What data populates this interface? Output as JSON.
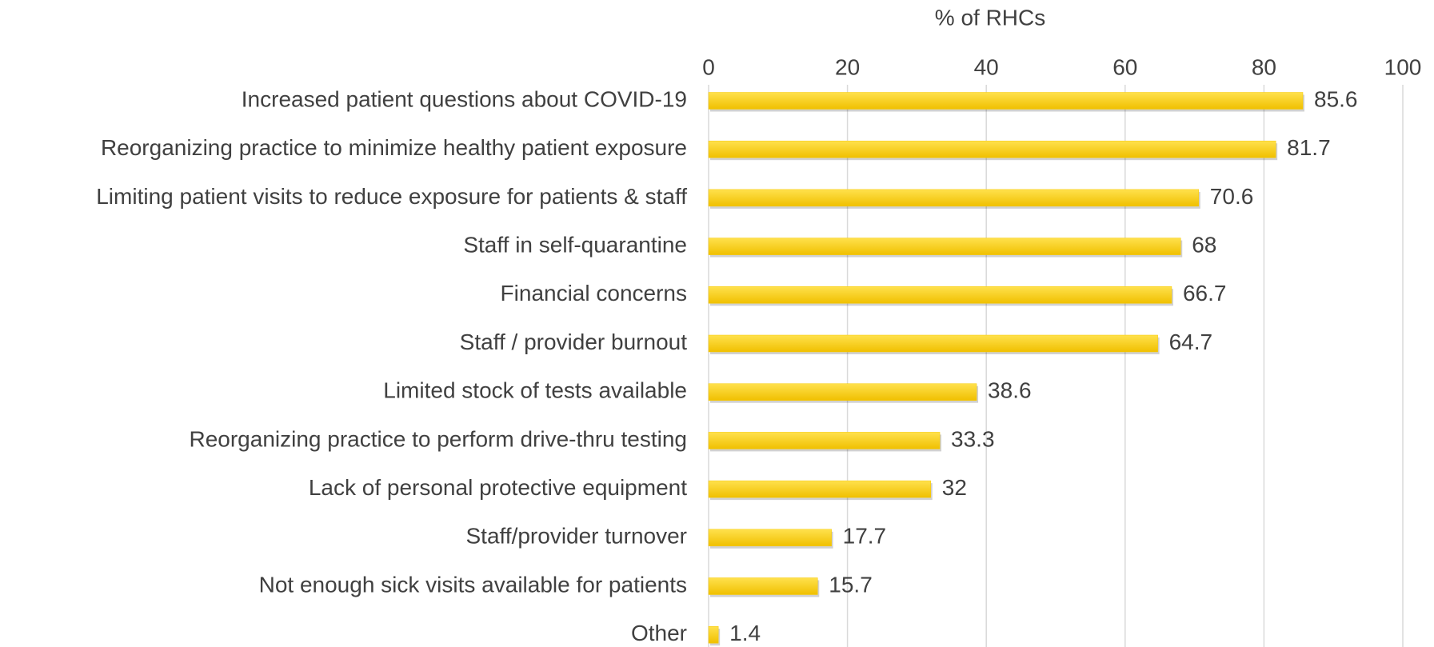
{
  "chart_data": {
    "type": "bar",
    "orientation": "horizontal",
    "xlabel": "% of RHCs",
    "categories": [
      "Increased patient questions about COVID-19",
      "Reorganizing practice to minimize healthy patient exposure",
      "Limiting patient visits to reduce exposure for patients & staff",
      "Staff in self-quarantine",
      "Financial concerns",
      "Staff / provider burnout",
      "Limited stock of tests available",
      "Reorganizing practice to perform drive-thru testing",
      "Lack of personal protective equipment",
      "Staff/provider turnover",
      "Not enough sick visits available for patients",
      "Other"
    ],
    "values": [
      85.6,
      81.7,
      70.6,
      68,
      66.7,
      64.7,
      38.6,
      33.3,
      32,
      17.7,
      15.7,
      1.4
    ],
    "color": "#f7c900",
    "xlim": [
      0,
      100
    ],
    "xticks": [
      0,
      20,
      40,
      60,
      80,
      100
    ],
    "grid": true
  }
}
